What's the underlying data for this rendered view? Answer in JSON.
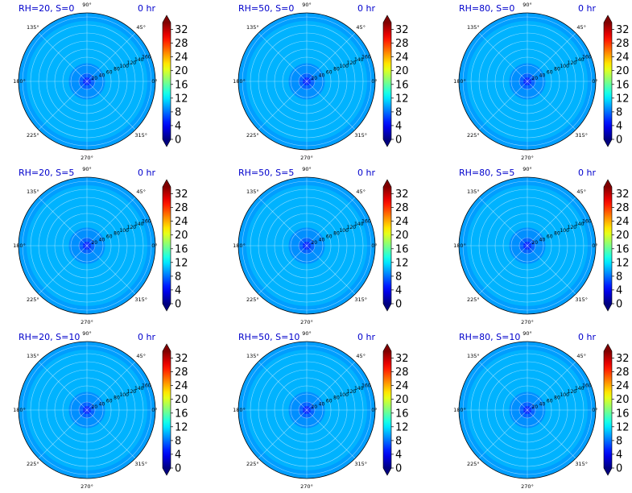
{
  "figure": {
    "time_label": "0 hr",
    "title_color": "#0000cc"
  },
  "colormap": {
    "name": "jet",
    "extend": "both",
    "ticks": [
      0,
      4,
      8,
      12,
      16,
      20,
      24,
      28,
      32
    ],
    "range": [
      0,
      34
    ]
  },
  "polar_axes": {
    "angle_ticks": [
      "0°",
      "45°",
      "90°",
      "135°",
      "180°",
      "225°",
      "270°",
      "315°"
    ],
    "radial_ticks": [
      "20",
      "40",
      "60",
      "80",
      "100",
      "120",
      "140",
      "160"
    ],
    "rmax": 170,
    "radial_label_angle_deg": 22.5
  },
  "chart_data": [
    {
      "type": "heatmap",
      "projection": "polar",
      "title": "RH=20, S=0",
      "time": "0 hr",
      "colormap": "jet",
      "clim": [
        0,
        34
      ],
      "rings": [
        {
          "r0": 0,
          "r1": 10,
          "value": 5.5
        },
        {
          "r0": 10,
          "r1": 20,
          "value": 7.5
        },
        {
          "r0": 20,
          "r1": 45,
          "value": 9.0
        },
        {
          "r0": 45,
          "r1": 150,
          "value": 10.2
        },
        {
          "r0": 150,
          "r1": 170,
          "value": 9.5
        }
      ]
    },
    {
      "type": "heatmap",
      "projection": "polar",
      "title": "RH=50, S=0",
      "time": "0 hr",
      "colormap": "jet",
      "clim": [
        0,
        34
      ],
      "rings": [
        {
          "r0": 0,
          "r1": 10,
          "value": 5.5
        },
        {
          "r0": 10,
          "r1": 20,
          "value": 7.5
        },
        {
          "r0": 20,
          "r1": 45,
          "value": 9.0
        },
        {
          "r0": 45,
          "r1": 150,
          "value": 10.2
        },
        {
          "r0": 150,
          "r1": 170,
          "value": 9.5
        }
      ]
    },
    {
      "type": "heatmap",
      "projection": "polar",
      "title": "RH=80, S=0",
      "time": "0 hr",
      "colormap": "jet",
      "clim": [
        0,
        34
      ],
      "rings": [
        {
          "r0": 0,
          "r1": 10,
          "value": 5.5
        },
        {
          "r0": 10,
          "r1": 20,
          "value": 7.5
        },
        {
          "r0": 20,
          "r1": 45,
          "value": 9.0
        },
        {
          "r0": 45,
          "r1": 150,
          "value": 10.2
        },
        {
          "r0": 150,
          "r1": 170,
          "value": 9.5
        }
      ]
    },
    {
      "type": "heatmap",
      "projection": "polar",
      "title": "RH=20, S=5",
      "time": "0 hr",
      "colormap": "jet",
      "clim": [
        0,
        34
      ],
      "rings": [
        {
          "r0": 0,
          "r1": 10,
          "value": 5.5
        },
        {
          "r0": 10,
          "r1": 20,
          "value": 7.5
        },
        {
          "r0": 20,
          "r1": 45,
          "value": 9.0
        },
        {
          "r0": 45,
          "r1": 150,
          "value": 10.2
        },
        {
          "r0": 150,
          "r1": 170,
          "value": 9.5
        }
      ]
    },
    {
      "type": "heatmap",
      "projection": "polar",
      "title": "RH=50, S=5",
      "time": "0 hr",
      "colormap": "jet",
      "clim": [
        0,
        34
      ],
      "rings": [
        {
          "r0": 0,
          "r1": 10,
          "value": 5.5
        },
        {
          "r0": 10,
          "r1": 20,
          "value": 7.5
        },
        {
          "r0": 20,
          "r1": 45,
          "value": 9.0
        },
        {
          "r0": 45,
          "r1": 150,
          "value": 10.2
        },
        {
          "r0": 150,
          "r1": 170,
          "value": 9.5
        }
      ]
    },
    {
      "type": "heatmap",
      "projection": "polar",
      "title": "RH=80, S=5",
      "time": "0 hr",
      "colormap": "jet",
      "clim": [
        0,
        34
      ],
      "rings": [
        {
          "r0": 0,
          "r1": 10,
          "value": 5.5
        },
        {
          "r0": 10,
          "r1": 20,
          "value": 7.5
        },
        {
          "r0": 20,
          "r1": 45,
          "value": 9.0
        },
        {
          "r0": 45,
          "r1": 150,
          "value": 10.2
        },
        {
          "r0": 150,
          "r1": 170,
          "value": 9.5
        }
      ]
    },
    {
      "type": "heatmap",
      "projection": "polar",
      "title": "RH=20, S=10",
      "time": "0 hr",
      "colormap": "jet",
      "clim": [
        0,
        34
      ],
      "rings": [
        {
          "r0": 0,
          "r1": 10,
          "value": 5.5
        },
        {
          "r0": 10,
          "r1": 20,
          "value": 7.5
        },
        {
          "r0": 20,
          "r1": 45,
          "value": 9.0
        },
        {
          "r0": 45,
          "r1": 150,
          "value": 10.2
        },
        {
          "r0": 150,
          "r1": 170,
          "value": 9.5
        }
      ]
    },
    {
      "type": "heatmap",
      "projection": "polar",
      "title": "RH=50, S=10",
      "time": "0 hr",
      "colormap": "jet",
      "clim": [
        0,
        34
      ],
      "rings": [
        {
          "r0": 0,
          "r1": 10,
          "value": 5.5
        },
        {
          "r0": 10,
          "r1": 20,
          "value": 7.5
        },
        {
          "r0": 20,
          "r1": 45,
          "value": 9.0
        },
        {
          "r0": 45,
          "r1": 150,
          "value": 10.2
        },
        {
          "r0": 150,
          "r1": 170,
          "value": 9.5
        }
      ]
    },
    {
      "type": "heatmap",
      "projection": "polar",
      "title": "RH=80, S=10",
      "time": "0 hr",
      "colormap": "jet",
      "clim": [
        0,
        34
      ],
      "rings": [
        {
          "r0": 0,
          "r1": 10,
          "value": 5.5
        },
        {
          "r0": 10,
          "r1": 20,
          "value": 7.5
        },
        {
          "r0": 20,
          "r1": 45,
          "value": 9.0
        },
        {
          "r0": 45,
          "r1": 150,
          "value": 10.2
        },
        {
          "r0": 150,
          "r1": 170,
          "value": 9.5
        }
      ]
    }
  ]
}
